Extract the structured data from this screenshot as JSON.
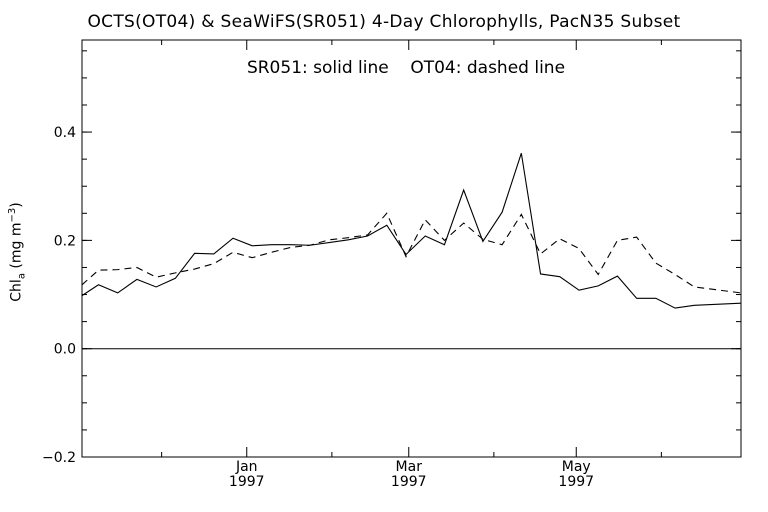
{
  "chart_data": {
    "type": "line",
    "title": "OCTS(OT04) & SeaWiFS(SR051) 4-Day Chlorophylls, PacN35 Subset",
    "subtitle": "SR051: solid line    OT04: dashed line",
    "ylabel": {
      "main": "Chl",
      "sub": "a",
      "units_pre": " (mg m",
      "units_sup": "−3",
      "units_post": ")"
    },
    "ylim": [
      -0.2,
      0.57
    ],
    "yticks": [
      {
        "value": 0.4,
        "label": "0.4"
      },
      {
        "value": 0.2,
        "label": "0.2"
      },
      {
        "value": 0.0,
        "label": "0.0"
      },
      {
        "value": -0.2,
        "label": "−0.2"
      }
    ],
    "xlim": [
      "1996-11-02",
      "1997-06-30"
    ],
    "xticks": [
      {
        "date": "1997-01-01",
        "label": "Jan",
        "label2": "1997"
      },
      {
        "date": "1997-03-01",
        "label": "Mar",
        "label2": "1997"
      },
      {
        "date": "1997-05-01",
        "label": "May",
        "label2": "1997"
      }
    ],
    "zero_line": 0.0,
    "series": [
      {
        "name": "SR051",
        "style": "solid",
        "color": "#000000",
        "points": [
          {
            "x": "1996-11-02",
            "y": 0.098
          },
          {
            "x": "1996-11-08",
            "y": 0.118
          },
          {
            "x": "1996-11-15",
            "y": 0.103
          },
          {
            "x": "1996-11-22",
            "y": 0.128
          },
          {
            "x": "1996-11-29",
            "y": 0.114
          },
          {
            "x": "1996-12-06",
            "y": 0.13
          },
          {
            "x": "1996-12-13",
            "y": 0.176
          },
          {
            "x": "1996-12-20",
            "y": 0.175
          },
          {
            "x": "1996-12-27",
            "y": 0.204
          },
          {
            "x": "1997-01-03",
            "y": 0.19
          },
          {
            "x": "1997-01-10",
            "y": 0.192
          },
          {
            "x": "1997-01-17",
            "y": 0.192
          },
          {
            "x": "1997-01-24",
            "y": 0.191
          },
          {
            "x": "1997-01-31",
            "y": 0.196
          },
          {
            "x": "1997-02-07",
            "y": 0.201
          },
          {
            "x": "1997-02-14",
            "y": 0.208
          },
          {
            "x": "1997-02-21",
            "y": 0.228
          },
          {
            "x": "1997-02-28",
            "y": 0.174
          },
          {
            "x": "1997-03-07",
            "y": 0.208
          },
          {
            "x": "1997-03-14",
            "y": 0.192
          },
          {
            "x": "1997-03-21",
            "y": 0.293
          },
          {
            "x": "1997-03-28",
            "y": 0.198
          },
          {
            "x": "1997-04-04",
            "y": 0.252
          },
          {
            "x": "1997-04-11",
            "y": 0.361
          },
          {
            "x": "1997-04-18",
            "y": 0.138
          },
          {
            "x": "1997-04-25",
            "y": 0.133
          },
          {
            "x": "1997-05-02",
            "y": 0.108
          },
          {
            "x": "1997-05-09",
            "y": 0.116
          },
          {
            "x": "1997-05-16",
            "y": 0.134
          },
          {
            "x": "1997-05-23",
            "y": 0.093
          },
          {
            "x": "1997-05-30",
            "y": 0.093
          },
          {
            "x": "1997-06-06",
            "y": 0.075
          },
          {
            "x": "1997-06-13",
            "y": 0.08
          },
          {
            "x": "1997-06-30",
            "y": 0.084
          }
        ]
      },
      {
        "name": "OT04",
        "style": "dashed",
        "color": "#000000",
        "points": [
          {
            "x": "1996-11-02",
            "y": 0.118
          },
          {
            "x": "1996-11-08",
            "y": 0.145
          },
          {
            "x": "1996-11-15",
            "y": 0.146
          },
          {
            "x": "1996-11-22",
            "y": 0.15
          },
          {
            "x": "1996-11-29",
            "y": 0.132
          },
          {
            "x": "1996-12-06",
            "y": 0.14
          },
          {
            "x": "1996-12-13",
            "y": 0.147
          },
          {
            "x": "1996-12-20",
            "y": 0.157
          },
          {
            "x": "1996-12-27",
            "y": 0.178
          },
          {
            "x": "1997-01-03",
            "y": 0.168
          },
          {
            "x": "1997-01-10",
            "y": 0.178
          },
          {
            "x": "1997-01-17",
            "y": 0.187
          },
          {
            "x": "1997-01-24",
            "y": 0.191
          },
          {
            "x": "1997-01-31",
            "y": 0.201
          },
          {
            "x": "1997-02-07",
            "y": 0.205
          },
          {
            "x": "1997-02-14",
            "y": 0.21
          },
          {
            "x": "1997-02-21",
            "y": 0.25
          },
          {
            "x": "1997-02-28",
            "y": 0.17
          },
          {
            "x": "1997-03-07",
            "y": 0.238
          },
          {
            "x": "1997-03-14",
            "y": 0.2
          },
          {
            "x": "1997-03-21",
            "y": 0.232
          },
          {
            "x": "1997-03-28",
            "y": 0.202
          },
          {
            "x": "1997-04-04",
            "y": 0.192
          },
          {
            "x": "1997-04-11",
            "y": 0.248
          },
          {
            "x": "1997-04-18",
            "y": 0.175
          },
          {
            "x": "1997-04-25",
            "y": 0.203
          },
          {
            "x": "1997-05-02",
            "y": 0.185
          },
          {
            "x": "1997-05-09",
            "y": 0.137
          },
          {
            "x": "1997-05-16",
            "y": 0.2
          },
          {
            "x": "1997-05-23",
            "y": 0.206
          },
          {
            "x": "1997-05-30",
            "y": 0.158
          },
          {
            "x": "1997-06-06",
            "y": 0.137
          },
          {
            "x": "1997-06-13",
            "y": 0.114
          },
          {
            "x": "1997-06-30",
            "y": 0.103
          }
        ]
      }
    ]
  }
}
